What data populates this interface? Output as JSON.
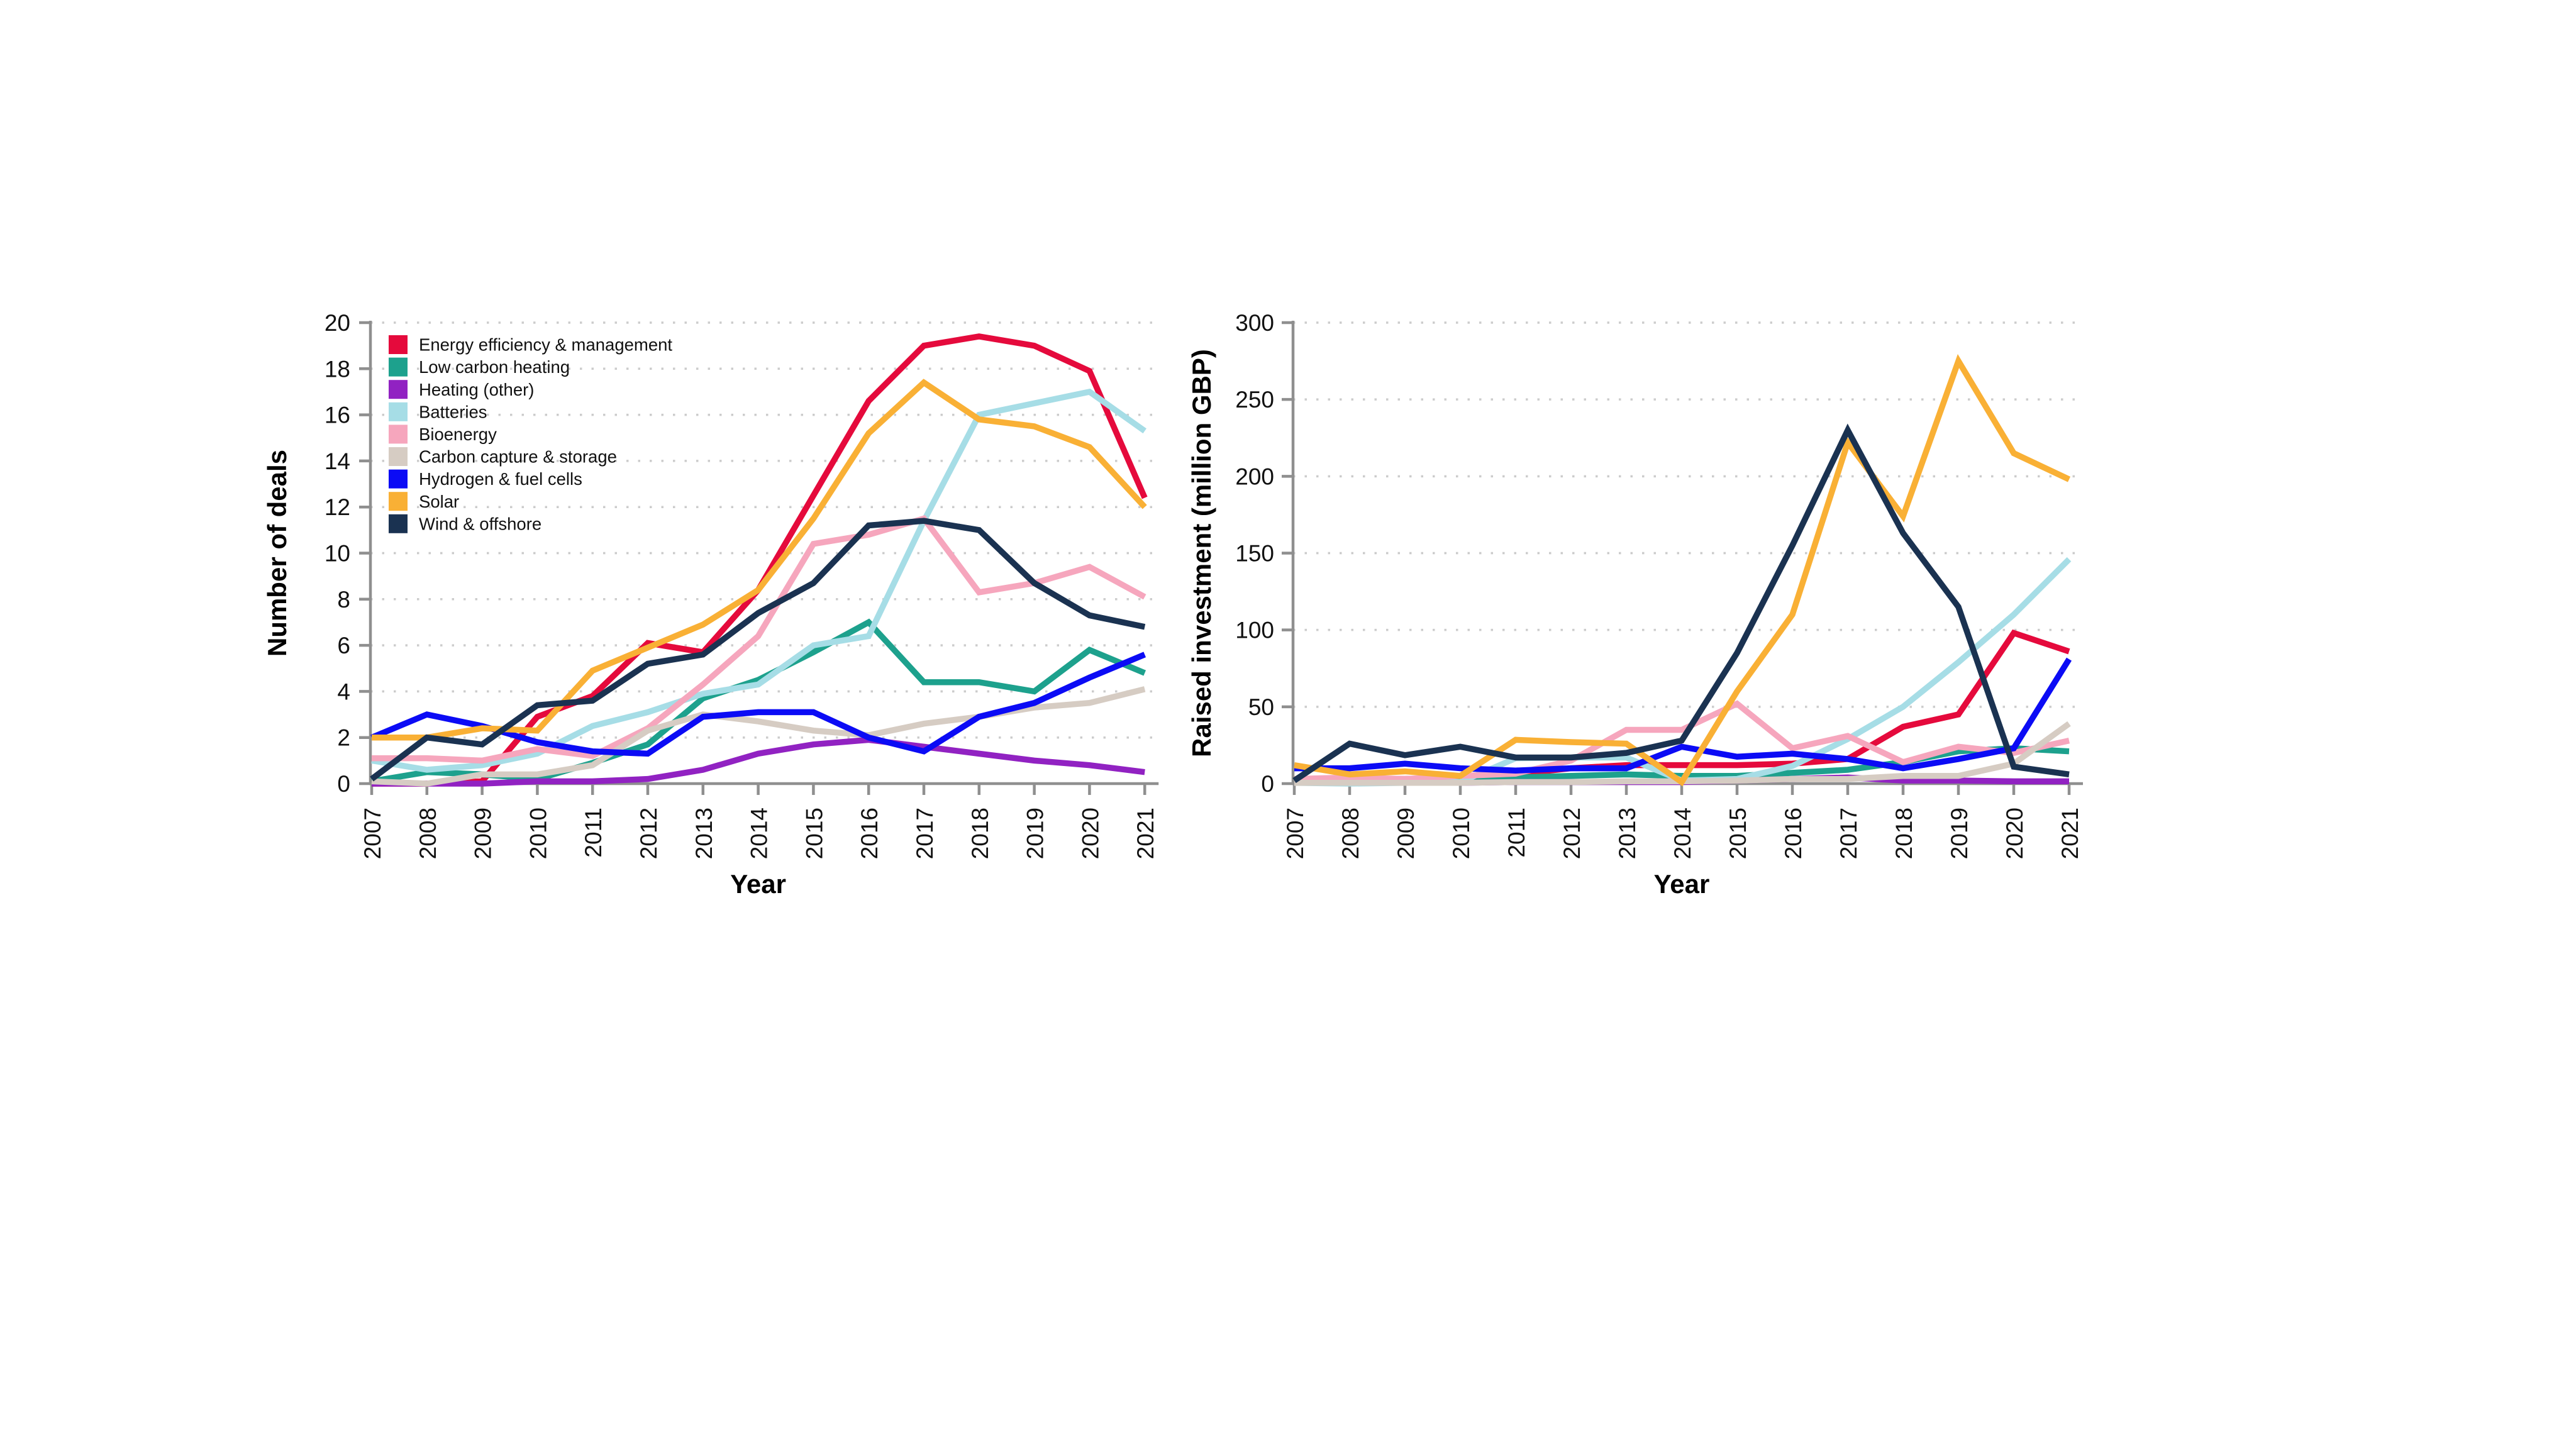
{
  "figure": {
    "background": "#ffffff",
    "axis_color": "#8f8f8f",
    "grid_color": "#cccccc",
    "text_color": "#111111"
  },
  "legend": {
    "items": [
      "Energy efficiency & management",
      "Low carbon heating",
      "Heating (other)",
      "Batteries",
      "Bioenergy",
      "Carbon capture & storage",
      "Hydrogen & fuel cells",
      "Solar",
      "Wind & offshore"
    ]
  },
  "chart_data": [
    {
      "type": "line",
      "title": "",
      "xlabel": "Year",
      "ylabel": "Number of deals",
      "x": [
        2007,
        2008,
        2009,
        2010,
        2011,
        2012,
        2013,
        2014,
        2015,
        2016,
        2017,
        2018,
        2019,
        2020,
        2021
      ],
      "ylim": [
        0,
        20
      ],
      "ytick_step": 2,
      "grid": "horizontal-dotted",
      "legend_position": "top-left-inside",
      "series": [
        {
          "name": "Energy efficiency & management",
          "color": "#e50a3c",
          "values": [
            0,
            0,
            0.1,
            2.9,
            3.8,
            6.1,
            5.7,
            8.4,
            12.5,
            16.6,
            19.0,
            19.4,
            19.0,
            17.9,
            12.4
          ]
        },
        {
          "name": "Low carbon heating",
          "color": "#1da18d",
          "values": [
            0.1,
            0.5,
            0.4,
            0.2,
            0.9,
            1.7,
            3.7,
            4.5,
            5.7,
            7.0,
            4.4,
            4.4,
            4.0,
            5.8,
            4.8
          ]
        },
        {
          "name": "Heating (other)",
          "color": "#9122c2",
          "values": [
            0,
            0,
            0,
            0.1,
            0.1,
            0.2,
            0.6,
            1.3,
            1.7,
            1.9,
            1.6,
            1.3,
            1.0,
            0.8,
            0.5
          ]
        },
        {
          "name": "Batteries",
          "color": "#a6dde6",
          "values": [
            1.0,
            0.6,
            0.8,
            1.3,
            2.5,
            3.1,
            3.9,
            4.3,
            6.0,
            6.4,
            11.4,
            16.0,
            16.5,
            17.0,
            15.3
          ]
        },
        {
          "name": "Bioenergy",
          "color": "#f6a6bd",
          "values": [
            1.1,
            1.1,
            1.0,
            1.5,
            1.2,
            2.4,
            4.3,
            6.4,
            10.4,
            10.8,
            11.5,
            8.3,
            8.7,
            9.4,
            8.1
          ]
        },
        {
          "name": "Carbon capture & storage",
          "color": "#d6ccc3",
          "values": [
            0.1,
            0,
            0.4,
            0.4,
            0.8,
            2.3,
            3.0,
            2.7,
            2.3,
            2.1,
            2.6,
            2.9,
            3.3,
            3.5,
            4.1
          ]
        },
        {
          "name": "Hydrogen & fuel cells",
          "color": "#0b0bf5",
          "values": [
            2.0,
            3.0,
            2.5,
            1.8,
            1.4,
            1.3,
            2.9,
            3.1,
            3.1,
            2.0,
            1.4,
            2.9,
            3.5,
            4.6,
            5.6
          ]
        },
        {
          "name": "Solar",
          "color": "#f9b035",
          "values": [
            2.0,
            2.0,
            2.4,
            2.3,
            4.9,
            5.9,
            6.9,
            8.4,
            11.5,
            15.2,
            17.4,
            15.8,
            15.5,
            14.6,
            12.0
          ]
        },
        {
          "name": "Wind & offshore",
          "color": "#1a3251",
          "values": [
            0.2,
            2.0,
            1.7,
            3.4,
            3.6,
            5.2,
            5.6,
            7.4,
            8.7,
            11.2,
            11.4,
            11.0,
            8.7,
            7.3,
            6.8
          ]
        }
      ]
    },
    {
      "type": "line",
      "title": "",
      "xlabel": "Year",
      "ylabel": "Raised investment (million GBP)",
      "x": [
        2007,
        2008,
        2009,
        2010,
        2011,
        2012,
        2013,
        2014,
        2015,
        2016,
        2017,
        2018,
        2019,
        2020,
        2021
      ],
      "ylim": [
        0,
        300
      ],
      "ytick_step": 50,
      "grid": "horizontal-dotted",
      "legend_position": "none",
      "series": [
        {
          "name": "Energy efficiency & management",
          "color": "#e50a3c",
          "values": [
            2,
            3,
            3,
            4,
            6,
            10,
            12,
            12,
            12,
            13,
            16,
            37,
            45,
            98,
            86
          ]
        },
        {
          "name": "Low carbon heating",
          "color": "#1da18d",
          "values": [
            2,
            2,
            2,
            2,
            4,
            5,
            6,
            5,
            5,
            7,
            9,
            14,
            21,
            23,
            21
          ]
        },
        {
          "name": "Heating (other)",
          "color": "#9122c2",
          "values": [
            0.5,
            0.5,
            0.5,
            0.5,
            1,
            1,
            1,
            1,
            2,
            3,
            4,
            2,
            2,
            1.5,
            1.5
          ]
        },
        {
          "name": "Batteries",
          "color": "#a6dde6",
          "values": [
            0.5,
            0,
            0.5,
            1,
            16.5,
            17,
            17,
            2,
            3,
            11.5,
            29,
            50,
            79,
            110,
            146
          ]
        },
        {
          "name": "Bioenergy",
          "color": "#f6a6bd",
          "values": [
            3,
            4,
            3,
            5,
            6.5,
            15,
            35,
            35,
            52,
            23,
            31,
            14,
            24,
            20,
            28
          ]
        },
        {
          "name": "Carbon capture & storage",
          "color": "#d6ccc3",
          "values": [
            0.5,
            0.5,
            0.5,
            0.5,
            1,
            1,
            1.5,
            1.5,
            2,
            3,
            3,
            5,
            5,
            13,
            39
          ]
        },
        {
          "name": "Hydrogen & fuel cells",
          "color": "#0b0bf5",
          "values": [
            10,
            10,
            13,
            10,
            8.5,
            10,
            10,
            24,
            17.5,
            19.5,
            16,
            10,
            16,
            23,
            81
          ]
        },
        {
          "name": "Solar",
          "color": "#f9b035",
          "values": [
            12,
            6,
            8,
            5,
            28.5,
            27,
            26,
            1,
            60,
            110,
            222,
            174,
            275,
            215,
            198
          ]
        },
        {
          "name": "Wind & offshore",
          "color": "#1a3251",
          "values": [
            2,
            26,
            18.5,
            24,
            17,
            17,
            20,
            28,
            85,
            155,
            230,
            163,
            115,
            11,
            6
          ]
        }
      ]
    }
  ]
}
